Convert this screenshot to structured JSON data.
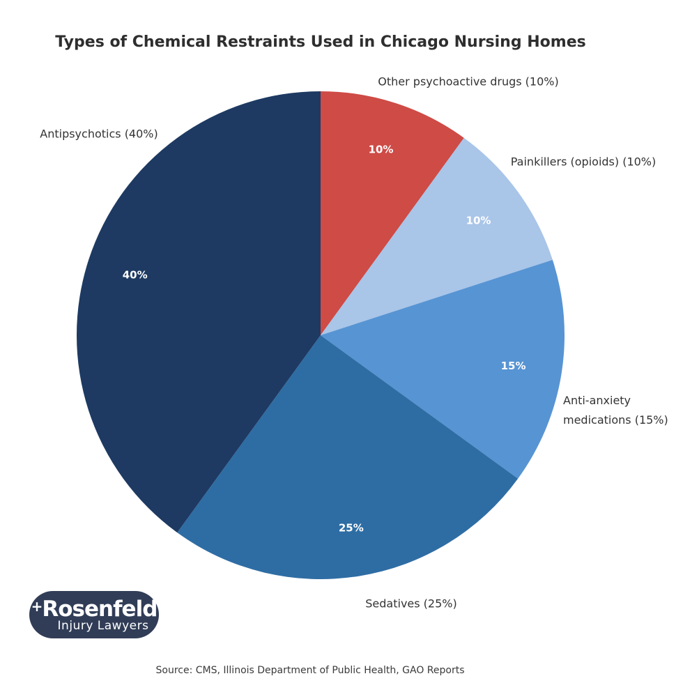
{
  "chart_data": {
    "type": "pie",
    "title": "Types of Chemical Restraints Used in Chicago Nursing Homes",
    "start_angle": "top",
    "direction": "clockwise",
    "pct_label_color": "#ffffff",
    "slices": [
      {
        "label": "Other psychoactive drugs",
        "value": 10,
        "pct_label": "10%",
        "callout": "Other psychoactive drugs (10%)",
        "color": "#ce4b46"
      },
      {
        "label": "Painkillers (opioids)",
        "value": 10,
        "pct_label": "10%",
        "callout": "Painkillers (opioids) (10%)",
        "color": "#a9c5e8"
      },
      {
        "label": "Anti-anxiety medications",
        "value": 15,
        "pct_label": "15%",
        "callout": "Anti-anxiety\nmedications (15%)",
        "color": "#5794d3"
      },
      {
        "label": "Sedatives",
        "value": 25,
        "pct_label": "25%",
        "callout": "Sedatives (25%)",
        "color": "#2e6da4"
      },
      {
        "label": "Antipsychotics",
        "value": 40,
        "pct_label": "40%",
        "callout": "Antipsychotics (40%)",
        "color": "#1e3a62"
      }
    ]
  },
  "logo": {
    "plus": "+",
    "name": "Rosenfeld",
    "tagline": "Injury Lawyers",
    "background": "#313d57"
  },
  "footer": {
    "source": "Source: CMS, Illinois Department of Public Health, GAO Reports"
  }
}
